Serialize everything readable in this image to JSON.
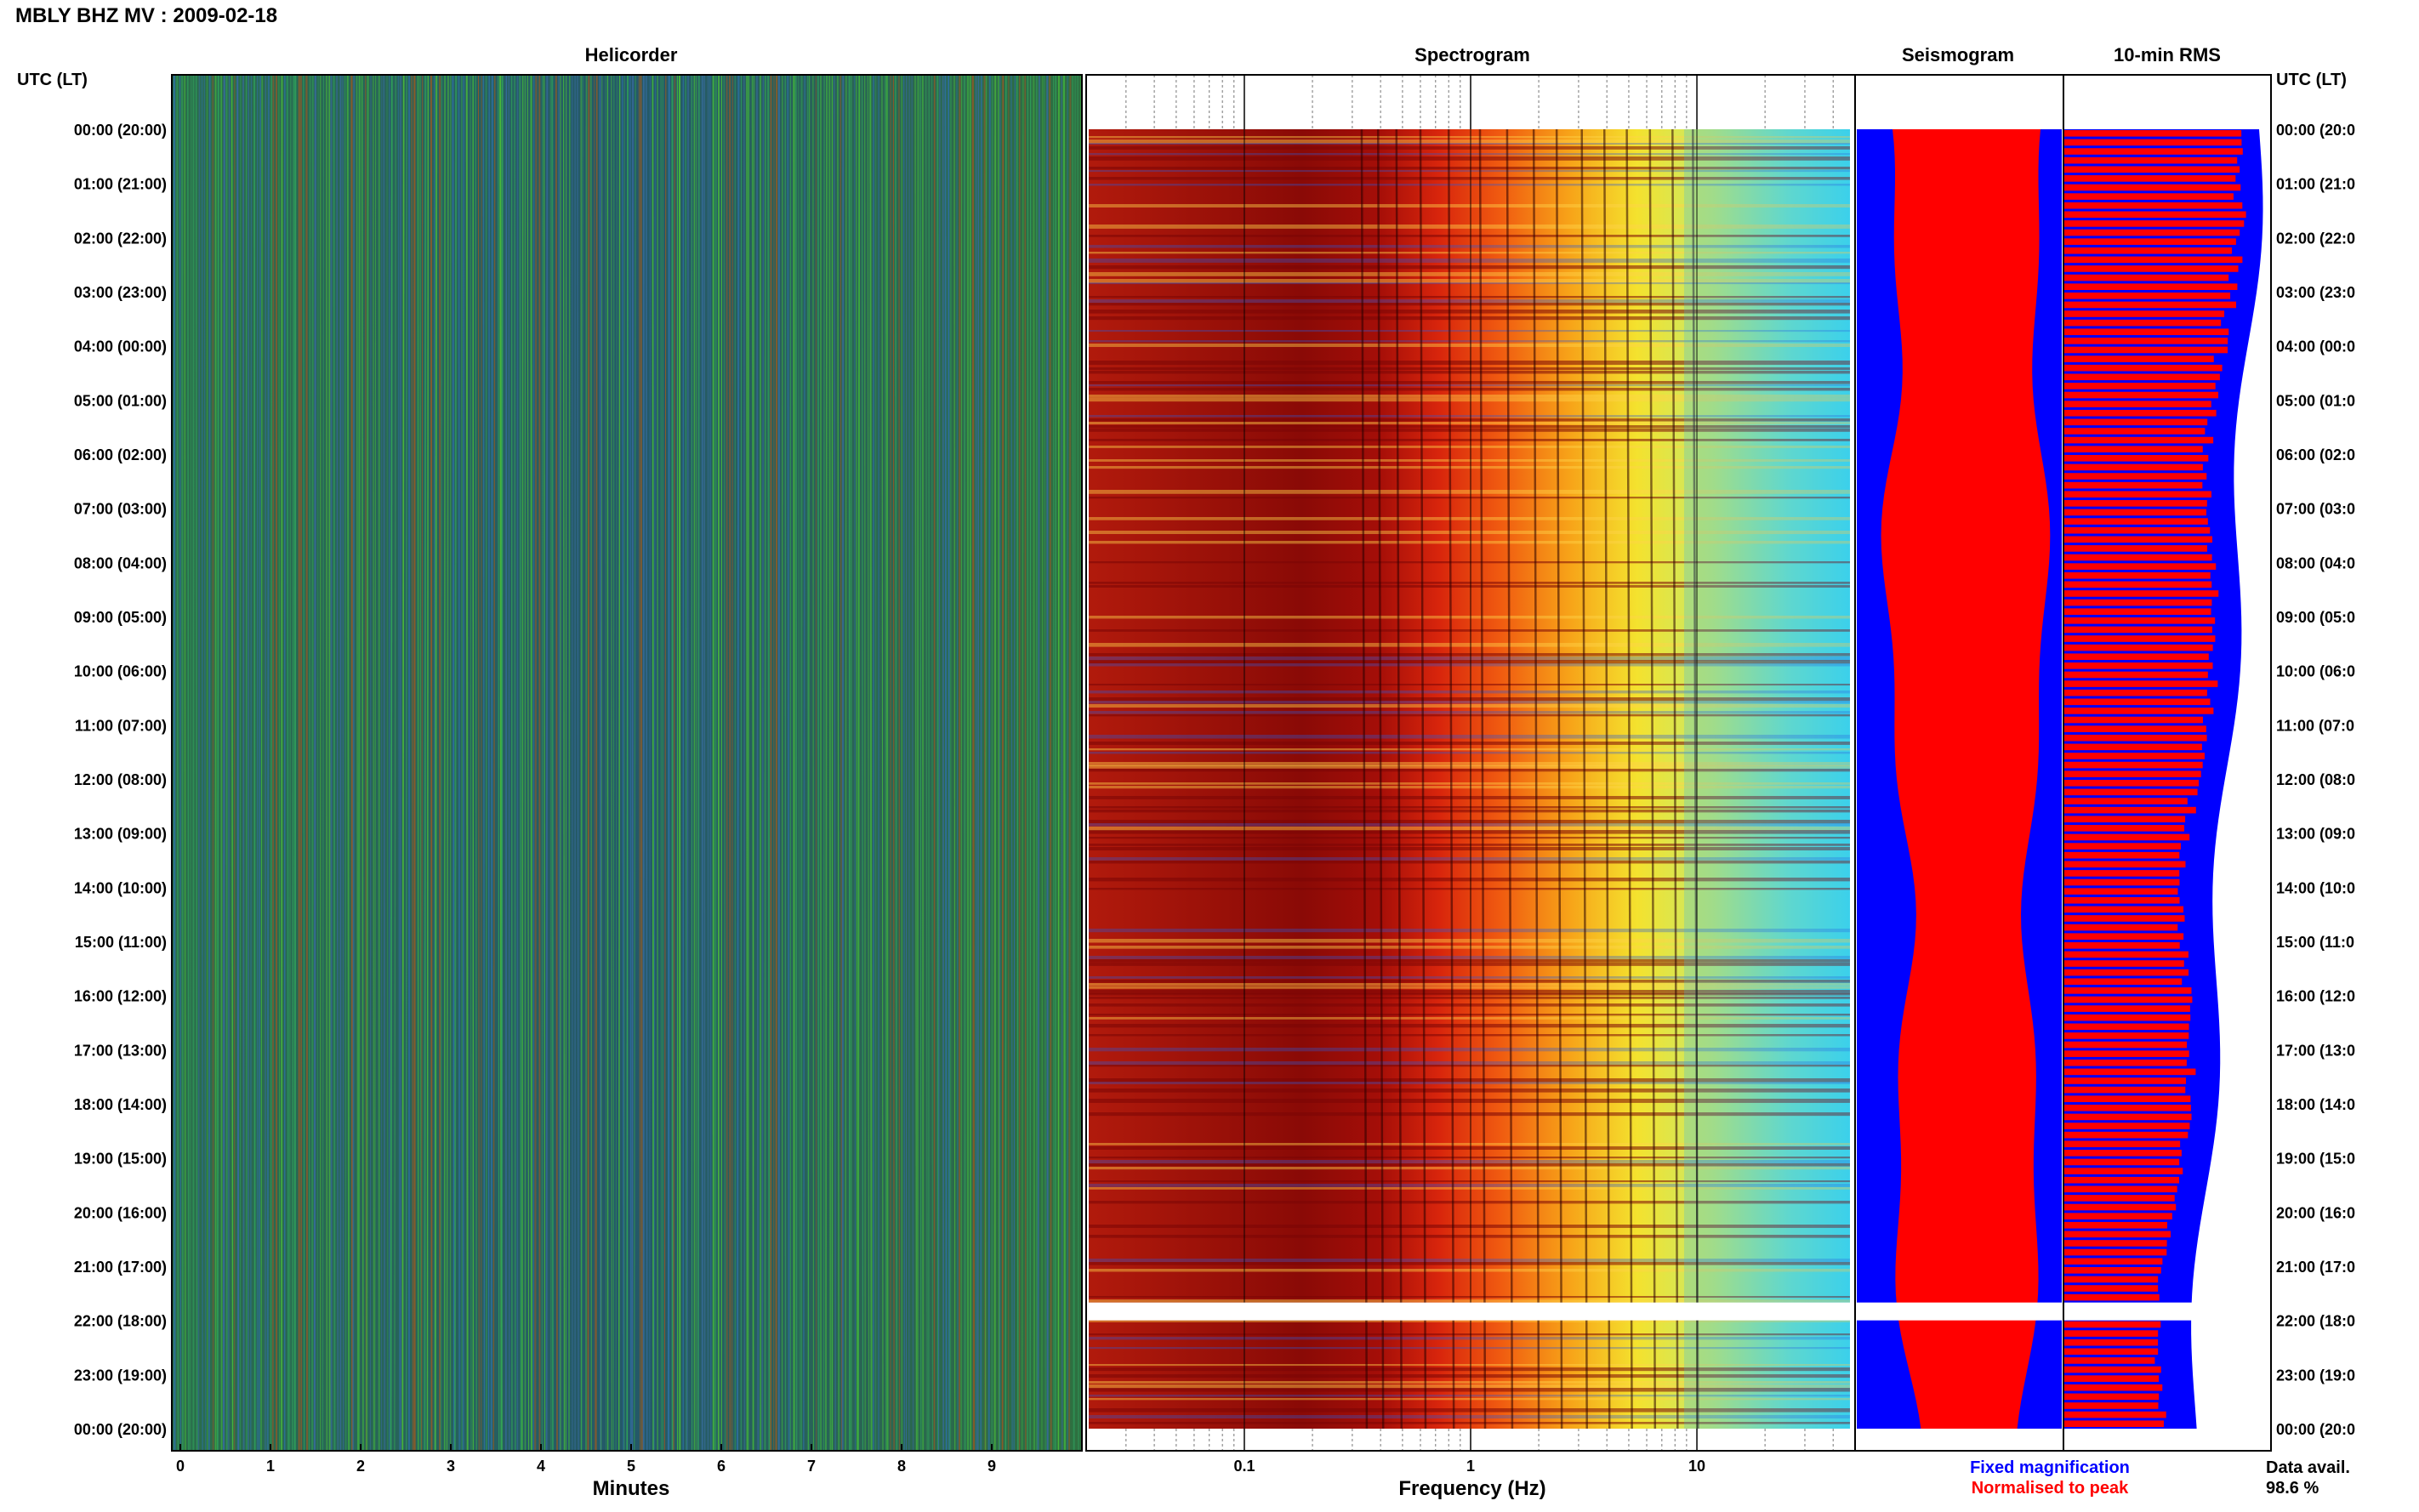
{
  "header": {
    "station_title": "MBLY BHZ MV : 2009-02-18"
  },
  "panels": {
    "helicorder": "Helicorder",
    "spectrogram": "Spectrogram",
    "seismogram": "Seismogram",
    "rms": "10-min RMS"
  },
  "axis_left_label": "UTC (LT)",
  "axis_right_label": "UTC (LT)",
  "time_labels": [
    "00:00 (20:00)",
    "01:00 (21:00)",
    "02:00 (22:00)",
    "03:00 (23:00)",
    "04:00 (00:00)",
    "05:00 (01:00)",
    "06:00 (02:00)",
    "07:00 (03:00)",
    "08:00 (04:00)",
    "09:00 (05:00)",
    "10:00 (06:00)",
    "11:00 (07:00)",
    "12:00 (08:00)",
    "13:00 (09:00)",
    "14:00 (10:00)",
    "15:00 (11:00)",
    "16:00 (12:00)",
    "17:00 (13:00)",
    "18:00 (14:00)",
    "19:00 (15:00)",
    "20:00 (16:00)",
    "21:00 (17:00)",
    "22:00 (18:00)",
    "23:00 (19:00)",
    "00:00 (20:00)"
  ],
  "time_labels_right": [
    "00:00 (20:0",
    "01:00 (21:0",
    "02:00 (22:0",
    "03:00 (23:0",
    "04:00 (00:0",
    "05:00 (01:0",
    "06:00 (02:0",
    "07:00 (03:0",
    "08:00 (04:0",
    "09:00 (05:0",
    "10:00 (06:0",
    "11:00 (07:0",
    "12:00 (08:0",
    "13:00 (09:0",
    "14:00 (10:0",
    "15:00 (11:0",
    "16:00 (12:0",
    "17:00 (13:0",
    "18:00 (14:0",
    "19:00 (15:0",
    "20:00 (16:0",
    "21:00 (17:0",
    "22:00 (18:0",
    "23:00 (19:0",
    "00:00 (20:0"
  ],
  "footer": {
    "minutes_label": "Minutes",
    "frequency_label": "Frequency (Hz)",
    "legend_fixed": "Fixed magnification",
    "legend_normalised": "Normalised to peak",
    "data_avail_label": "Data avail.",
    "data_avail_value": "98.6 %"
  },
  "colors": {
    "fixed": "#0000ff",
    "normalised": "#ff0000",
    "helicorder_bg": "#1f5a5a",
    "gap": "#ffffff"
  },
  "chart_data": [
    {
      "type": "heatmap",
      "name": "Helicorder",
      "xlabel": "Minutes",
      "x_ticks": [
        0,
        1,
        2,
        3,
        4,
        5,
        6,
        7,
        8,
        9
      ],
      "xlim": [
        0,
        10
      ],
      "ylim_hours": [
        0,
        24
      ]
    },
    {
      "type": "heatmap",
      "name": "Spectrogram",
      "xlabel": "Frequency (Hz)",
      "x_scale": "log",
      "xlim_hz": [
        0.02,
        50
      ],
      "x_tick_labels": [
        "0.1",
        "1",
        "10"
      ],
      "x_ticks_hz": [
        0.1,
        1,
        10
      ],
      "data_gap_hours": [
        21.67,
        22.0
      ]
    },
    {
      "type": "area",
      "name": "Seismogram",
      "series": [
        {
          "name": "Fixed magnification",
          "color": "#0000ff"
        },
        {
          "name": "Normalised to peak",
          "color": "#ff0000"
        }
      ]
    },
    {
      "type": "bar",
      "name": "10-min RMS",
      "series": [
        {
          "name": "Fixed magnification",
          "color": "#0000ff"
        },
        {
          "name": "Normalised to peak",
          "color": "#ff0000"
        }
      ],
      "data_availability_percent": 98.6
    }
  ]
}
